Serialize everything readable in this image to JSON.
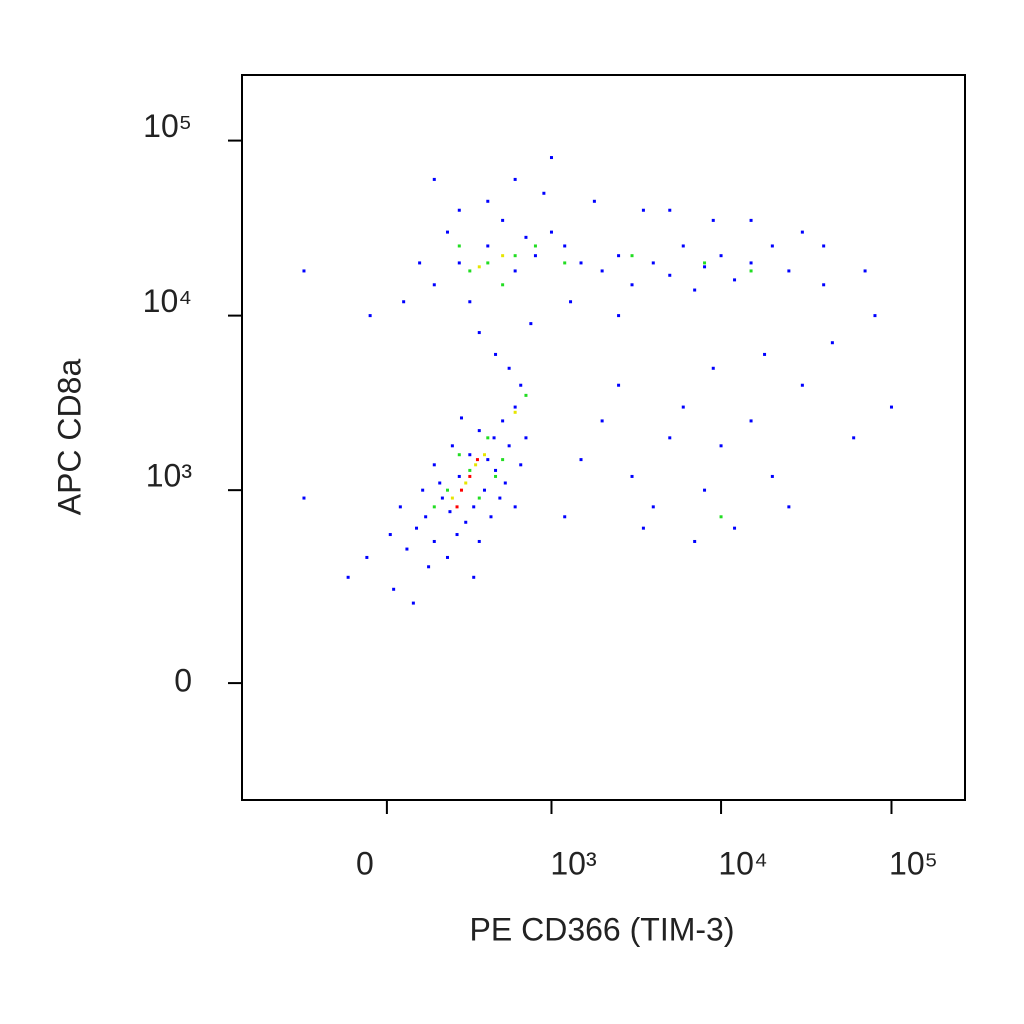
{
  "chart_data": {
    "type": "scatter",
    "xlabel": "PE CD366 (TIM-3)",
    "ylabel": "APC CD8a",
    "xscale": "biexponential",
    "yscale": "biexponential",
    "xlim": [
      -760,
      270000
    ],
    "ylim": [
      -353,
      237000
    ],
    "xticks": [
      0,
      {
        "value": 1000,
        "label": "10³"
      },
      {
        "value": 10000,
        "label": "10⁴"
      },
      {
        "value": 100000,
        "label": "10⁵"
      }
    ],
    "yticks": [
      0,
      {
        "value": 1000,
        "label": "10³"
      },
      {
        "value": 10000,
        "label": "10⁴"
      },
      {
        "value": 100000,
        "label": "10⁵"
      }
    ],
    "series": [
      {
        "color": "#0000ff",
        "x": [
          120,
          180,
          250,
          320,
          400,
          150,
          90,
          60,
          220,
          350,
          450,
          500,
          280,
          200,
          130,
          380,
          550,
          600,
          420,
          300,
          170,
          240,
          40,
          10,
          -60,
          -120,
          20,
          80,
          320,
          480,
          650,
          700,
          260,
          150,
          350,
          110,
          520,
          210,
          440,
          600,
          150,
          250,
          400,
          600,
          800,
          1000,
          300,
          500,
          700,
          200,
          100,
          50,
          350,
          450,
          550,
          650,
          1200,
          1500,
          2000,
          2500,
          3000,
          4000,
          5000,
          6000,
          7000,
          8000,
          10000,
          12000,
          15000,
          20000,
          25000,
          30000,
          9000,
          3500,
          1800,
          900,
          600,
          400,
          1300,
          2500,
          750,
          250,
          5000,
          15000,
          40000,
          -50,
          -300,
          150,
          1000,
          1500,
          2000,
          3000,
          4000,
          5000,
          6000,
          8000,
          10000,
          12000,
          15000,
          20000,
          25000,
          30000,
          7000,
          3500,
          2500,
          9000,
          18000,
          45000,
          60000,
          80000,
          100000,
          -300,
          1200,
          40000,
          70000
        ],
        "y": [
          700,
          900,
          1200,
          800,
          1500,
          500,
          600,
          450,
          1800,
          2200,
          1300,
          2500,
          650,
          400,
          350,
          1000,
          1800,
          3000,
          700,
          1600,
          1100,
          550,
          800,
          550,
          400,
          300,
          250,
          200,
          300,
          900,
          1400,
          2000,
          2600,
          1400,
          500,
          1000,
          1100,
          750,
          2000,
          800,
          15000,
          20000,
          25000,
          18000,
          22000,
          30000,
          12000,
          35000,
          28000,
          30000,
          20000,
          12000,
          8000,
          6000,
          5000,
          4000,
          25000,
          20000,
          18000,
          22000,
          15000,
          20000,
          17000,
          25000,
          14000,
          19000,
          22000,
          16000,
          20000,
          25000,
          18000,
          30000,
          35000,
          40000,
          45000,
          50000,
          60000,
          45000,
          12000,
          10000,
          9000,
          40000,
          40000,
          35000,
          25000,
          10000,
          18000,
          60000,
          80000,
          1500,
          2500,
          1200,
          800,
          2000,
          3000,
          1000,
          1800,
          600,
          2500,
          1200,
          800,
          4000,
          500,
          600,
          4000,
          5000,
          6000,
          7000,
          2000,
          10000,
          3000,
          900,
          700,
          15000,
          18000
        ]
      },
      {
        "color": "#22dd22",
        "x": [
          200,
          300,
          350,
          250,
          450,
          150,
          400,
          500,
          400,
          600,
          300,
          800,
          1200,
          500,
          8000,
          3000,
          15000,
          250,
          700,
          10000
        ],
        "y": [
          1000,
          1300,
          900,
          1600,
          1200,
          800,
          2000,
          1500,
          20000,
          22000,
          18000,
          25000,
          20000,
          15000,
          20000,
          22000,
          18000,
          25000,
          3500,
          700
        ]
      },
      {
        "color": "#e6e600",
        "x": [
          280,
          330,
          220,
          380,
          500,
          350,
          600
        ],
        "y": [
          1100,
          1400,
          900,
          1600,
          22000,
          19000,
          2800
        ]
      },
      {
        "color": "#ff0000",
        "x": [
          300,
          260,
          340,
          240
        ],
        "y": [
          1200,
          1000,
          1500,
          800
        ]
      }
    ]
  }
}
